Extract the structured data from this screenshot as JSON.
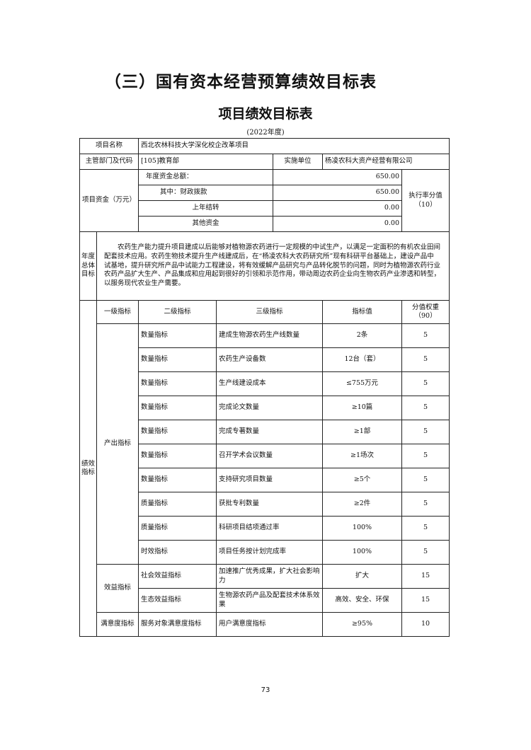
{
  "section_title": "（三）国有资本经营预算绩效目标表",
  "table_title": "项目绩效目标表",
  "year": "(2022年度)",
  "info": {
    "project_name_label": "项目名称",
    "project_name": "西北农林科技大学深化校企改革项目",
    "dept_label": "主管部门及代码",
    "dept": "[105]教育部",
    "impl_label": "实施单位",
    "impl": "杨凌农科大资产经营有限公司",
    "funds_label": "项目资金（万元）",
    "funds": [
      {
        "label": "年度资金总额：",
        "value": "650.00"
      },
      {
        "label": "其中：财政拨款",
        "value": "650.00"
      },
      {
        "label": "上年结转",
        "value": "0.00"
      },
      {
        "label": "其他资金",
        "value": "0.00"
      }
    ],
    "exec_rate_label": "执行率分值（10）"
  },
  "goal": {
    "label": "年度总体目标",
    "text": "农药生产能力提升项目建成以后能够对植物源农药进行一定规模的中试生产，以满足一定面积的有机农业田间配套技术应用。农药生物技术提升生产线建成后，在“杨凌农科大农药研究所”现有科研平台基础上，建设产品中试基地，提升研究所产品中试能力工程建设，将有效缓解产品研究与产品转化脱节的问题，同时为植物源农药行业农药产品扩大生产、产品集成和应用起到很好的引领和示范作用，带动周边农药企业向生物农药产业渗透和转型，以服务现代农业生产需要。"
  },
  "indicators": {
    "side_label": "绩效指标",
    "headers": [
      "一级指标",
      "二级指标",
      "三级指标",
      "指标值",
      "分值权重（90）"
    ],
    "groups": [
      {
        "level1": "产出指标",
        "rows": [
          {
            "level2": "数量指标",
            "level3": "建成生物源农药生产线数量",
            "value": "2条",
            "weight": "5"
          },
          {
            "level2": "数量指标",
            "level3": "农药生产设备数",
            "value": "12台（套）",
            "weight": "5"
          },
          {
            "level2": "数量指标",
            "level3": "生产线建设成本",
            "value": "≤755万元",
            "weight": "5"
          },
          {
            "level2": "数量指标",
            "level3": "完成论文数量",
            "value": "≥10篇",
            "weight": "5"
          },
          {
            "level2": "数量指标",
            "level3": "完成专著数量",
            "value": "≥1部",
            "weight": "5"
          },
          {
            "level2": "数量指标",
            "level3": "召开学术会议数量",
            "value": "≥1场次",
            "weight": "5"
          },
          {
            "level2": "数量指标",
            "level3": "支持研究项目数量",
            "value": "≥5个",
            "weight": "5"
          },
          {
            "level2": "质量指标",
            "level3": "获批专利数量",
            "value": "≥2件",
            "weight": "5"
          },
          {
            "level2": "质量指标",
            "level3": "科研项目结项通过率",
            "value": "100%",
            "weight": "5"
          },
          {
            "level2": "时效指标",
            "level3": "项目任务按计划完成率",
            "value": "100%",
            "weight": "5"
          }
        ]
      },
      {
        "level1": "效益指标",
        "rows": [
          {
            "level2": "社会效益指标",
            "level3": "加速推广优秀成果，扩大社会影响力",
            "value": "扩大",
            "weight": "15"
          },
          {
            "level2": "生态效益指标",
            "level3": "生物源农药产品及配套技术体系效果",
            "value": "高效、安全、环保",
            "weight": "15"
          }
        ]
      },
      {
        "level1": "满意度指标",
        "rows": [
          {
            "level2": "服务对象满意度指标",
            "level3": "用户满意度指标",
            "value": "≥95%",
            "weight": "10"
          }
        ]
      }
    ]
  },
  "page_number": "73"
}
